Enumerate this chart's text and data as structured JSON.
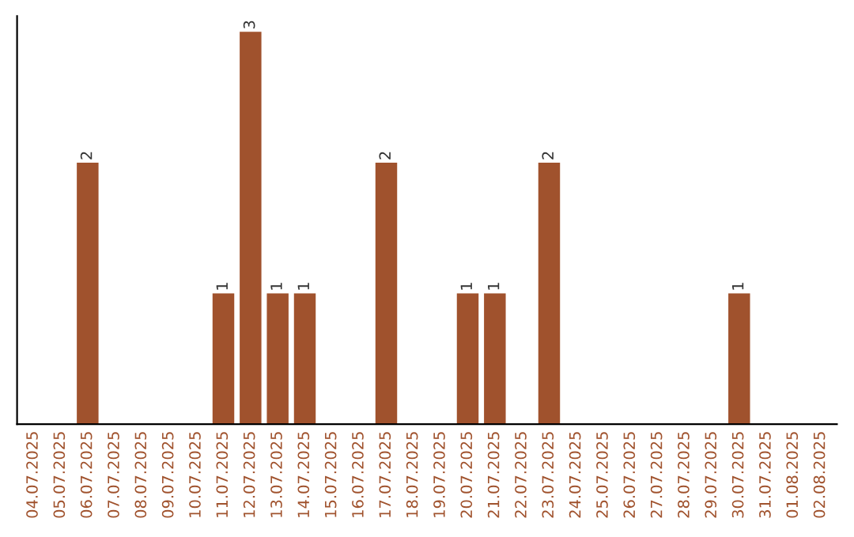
{
  "chart_data": {
    "type": "bar",
    "categories": [
      "04.07.2025",
      "05.07.2025",
      "06.07.2025",
      "07.07.2025",
      "08.07.2025",
      "09.07.2025",
      "10.07.2025",
      "11.07.2025",
      "12.07.2025",
      "13.07.2025",
      "14.07.2025",
      "15.07.2025",
      "16.07.2025",
      "17.07.2025",
      "18.07.2025",
      "19.07.2025",
      "20.07.2025",
      "21.07.2025",
      "22.07.2025",
      "23.07.2025",
      "24.07.2025",
      "25.07.2025",
      "26.07.2025",
      "27.07.2025",
      "28.07.2025",
      "29.07.2025",
      "30.07.2025",
      "31.07.2025",
      "01.08.2025",
      "02.08.2025"
    ],
    "values": [
      null,
      null,
      2,
      null,
      null,
      null,
      null,
      1,
      3,
      1,
      1,
      null,
      null,
      2,
      null,
      null,
      1,
      1,
      null,
      2,
      null,
      null,
      null,
      null,
      null,
      null,
      1,
      null,
      null,
      null
    ],
    "data_labels": true,
    "color": "#a0522d",
    "tick_labels": "x",
    "grid": false,
    "legend": false
  }
}
